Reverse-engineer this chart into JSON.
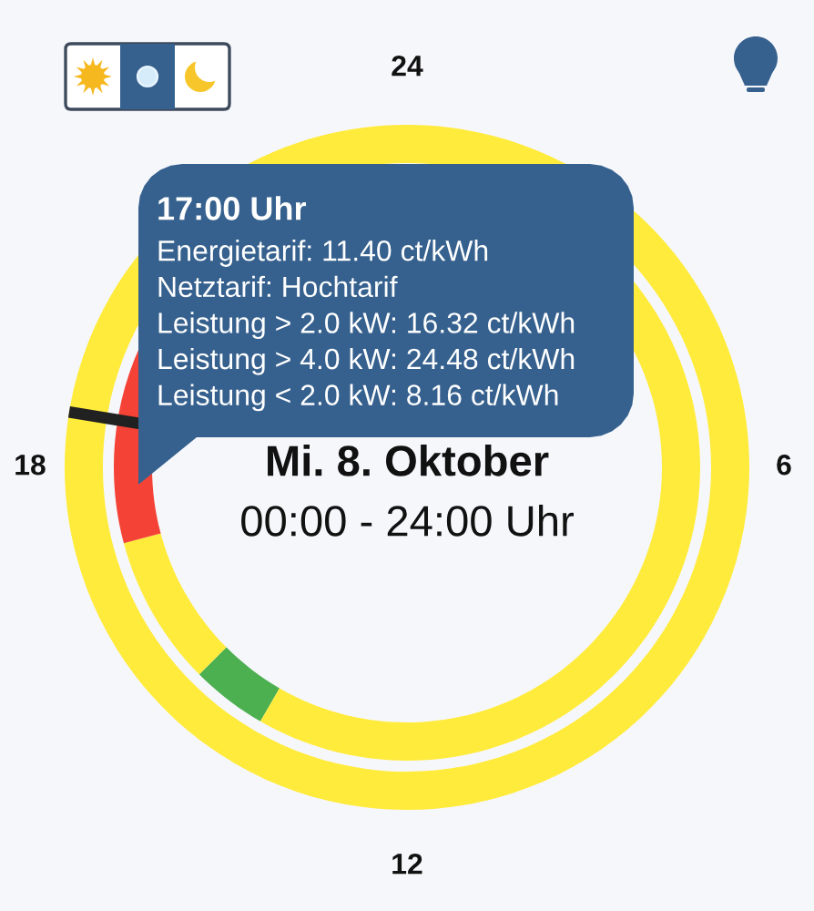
{
  "chart_data": {
    "type": "donut",
    "title": "Mi. 8. Oktober",
    "subtitle": "00:00 - 24:00 Uhr",
    "series": [
      {
        "values": [
          100
        ],
        "colors": [
          "#ffeb3b"
        ]
      },
      {
        "values": [
          4.2,
          8.3,
          12.5,
          75.0
        ],
        "colors": [
          "#4caf50",
          "#ffeb3b",
          "#f44336",
          "#ffeb3b"
        ]
      }
    ],
    "annotations": [
      "24",
      "6",
      "12",
      "18",
      "17:00 Uhr",
      "Energietarif: 11.40 ct/kWh",
      "Netztarif: Hochtarif",
      "Leistung > 2.0 kW: 16.32 ct/kWh",
      "Leistung > 4.0 kW: 24.48 ct/kWh",
      "Leistung < 2.0 kW: 8.16 ct/kWh"
    ]
  }
}
